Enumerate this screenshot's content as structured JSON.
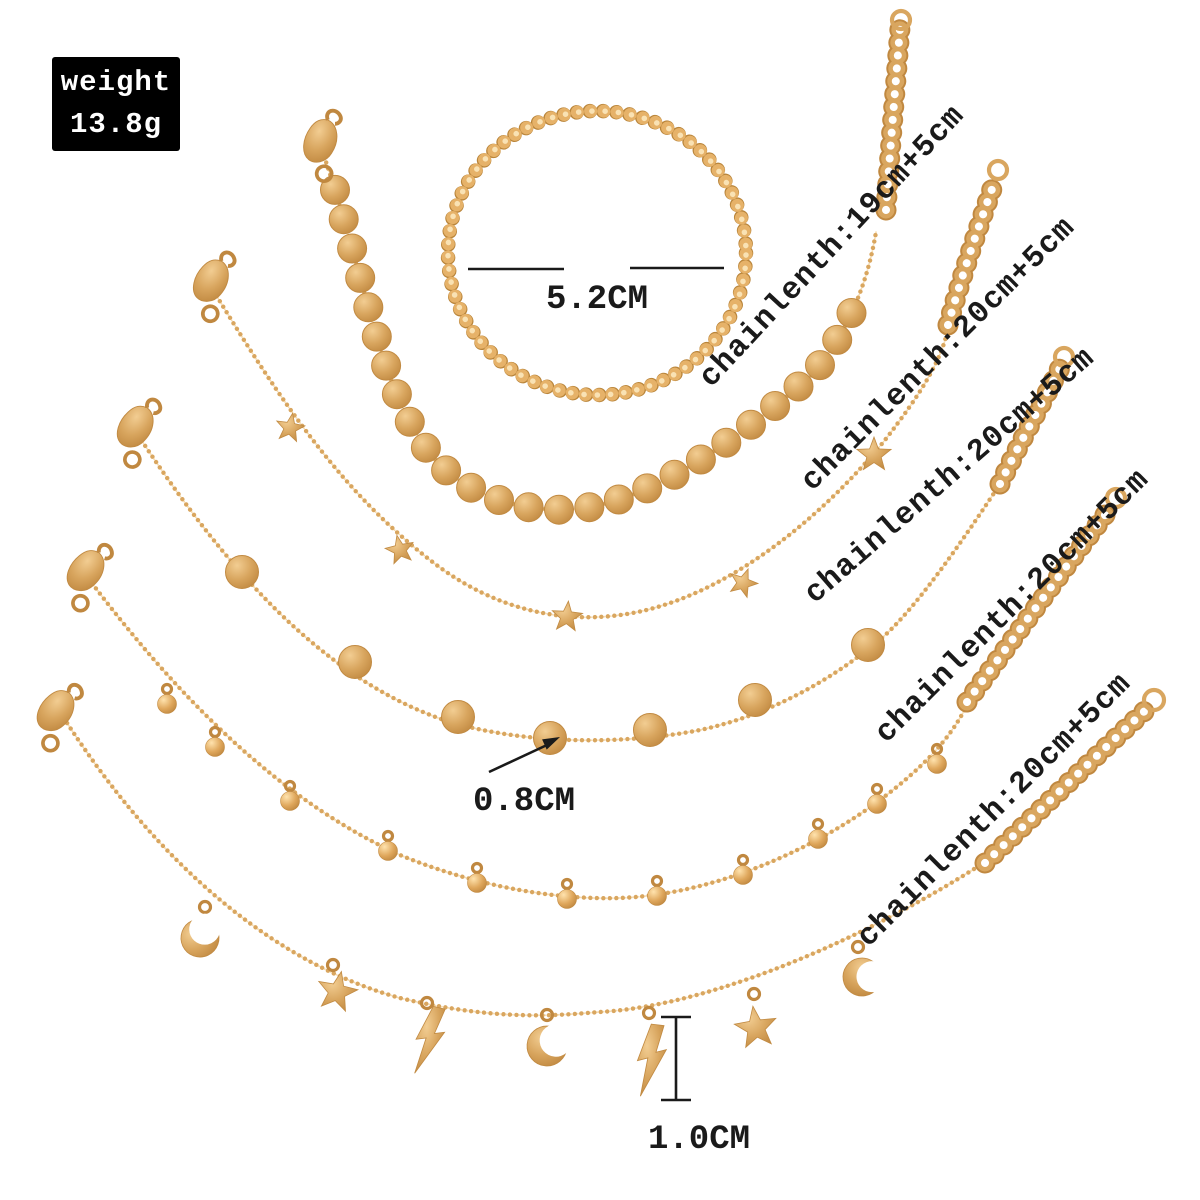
{
  "badge": {
    "label": "weight",
    "value": "13.8g"
  },
  "bracelet": {
    "diameter_label": "5.2CM"
  },
  "annotations": {
    "disc_size": "0.8CM",
    "charm_length": "1.0CM"
  },
  "chain_labels": [
    "chainlenth:19cm+5cm",
    "chainlenth:20cm+5cm",
    "chainlenth:20cm+5cm",
    "chainlenth:20cm+5cm",
    "chainlenth:20cm+5cm"
  ],
  "colors": {
    "gold": "#d9a65f",
    "gold_dark": "#c08840",
    "gold_light": "#f6d296",
    "background": "#ffffff",
    "annotation_text": "#1a1a1a",
    "badge_background": "#000000",
    "badge_text": "#ffffff"
  }
}
